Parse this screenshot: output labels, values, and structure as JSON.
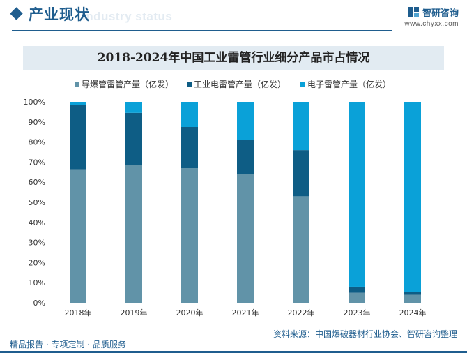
{
  "header": {
    "title": "产业现状",
    "subtitle": "Industry status",
    "brand_name": "智研咨询",
    "brand_url": "www.chyxx.com"
  },
  "footer": {
    "left": "精品报告 · 专项定制 · 品质服务",
    "source": "资料来源：中国爆破器材行业协会、智研咨询整理"
  },
  "colors": {
    "series1": "#6193a8",
    "series2": "#0e5d85",
    "series3": "#0aa1d8",
    "accent": "#1f5d8e"
  },
  "chart_data": {
    "type": "bar",
    "stacked": true,
    "title": "2018-2024年中国工业雷管行业细分产品市占情况",
    "categories": [
      "2018年",
      "2019年",
      "2020年",
      "2021年",
      "2022年",
      "2023年",
      "2024年"
    ],
    "series": [
      {
        "name": "导爆管雷管产量（亿发）",
        "values": [
          66.5,
          68.5,
          67,
          64,
          53,
          5,
          4
        ]
      },
      {
        "name": "工业电雷管产量（亿发）",
        "values": [
          32,
          26,
          20.5,
          17,
          23,
          3,
          1.5
        ]
      },
      {
        "name": "电子雷管产量（亿发）",
        "values": [
          1.5,
          5.5,
          12.5,
          19,
          24,
          92,
          94.5
        ]
      }
    ],
    "yticks": [
      "0%",
      "10%",
      "20%",
      "30%",
      "40%",
      "50%",
      "60%",
      "70%",
      "80%",
      "90%",
      "100%"
    ],
    "ylim": [
      0,
      100
    ],
    "legend_position": "top"
  }
}
